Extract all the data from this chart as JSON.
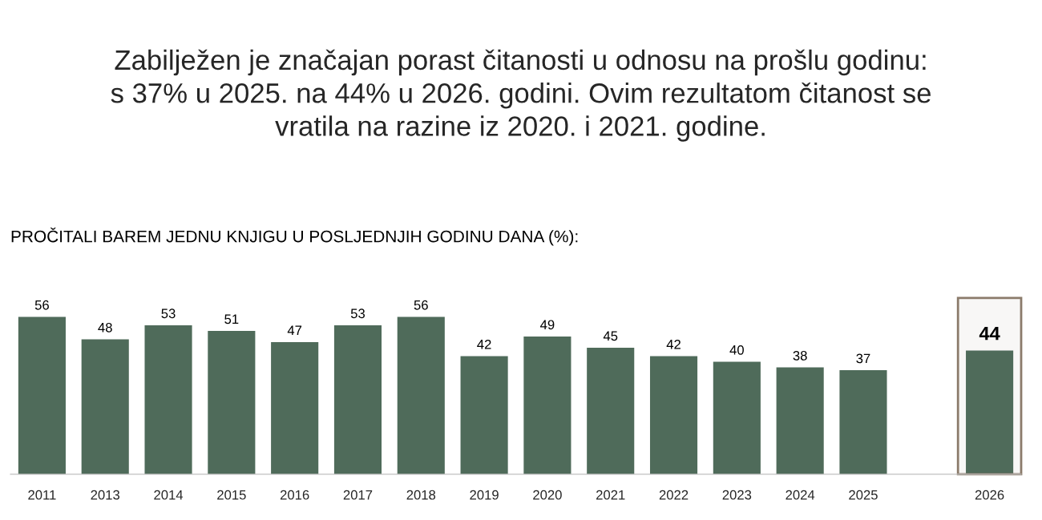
{
  "chart_data": {
    "type": "bar",
    "title": "Zabilježen je značajan porast čitanosti u odnosu na prošlu godinu:\ns 37% u 2025. na 44% u 2026. godini. Ovim rezultatom čitanost se\nvratila na razine iz 2020. i 2021. godine.",
    "subtitle": "PROČITALI BAREM JEDNU KNJIGU U POSLJEDNJIH GODINU DANA (%):",
    "categories": [
      "2011",
      "2013",
      "2014",
      "2015",
      "2016",
      "2017",
      "2018",
      "2019",
      "2020",
      "2021",
      "2022",
      "2023",
      "2024",
      "2025",
      null,
      "2026"
    ],
    "values": [
      56,
      48,
      53,
      51,
      47,
      53,
      56,
      42,
      49,
      45,
      42,
      40,
      38,
      37,
      null,
      44
    ],
    "color": "#4f6b5a",
    "data_labels": true,
    "grid": false,
    "bands": [
      {
        "axis": "x",
        "from": "2026",
        "to": "2026",
        "color": "#8b7b6b"
      }
    ]
  }
}
